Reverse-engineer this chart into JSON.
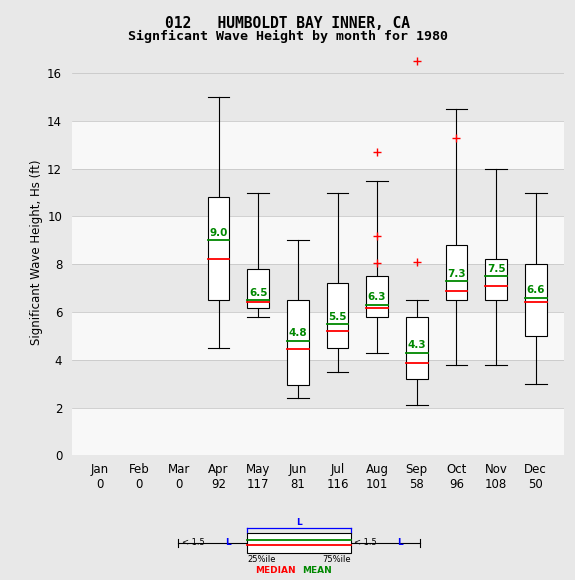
{
  "title1": "012   HUMBOLDT BAY INNER, CA",
  "title2": "Signficant Wave Height by month for 1980",
  "ylabel": "Significant Wave Height, Hs (ft)",
  "months": [
    "Jan",
    "Feb",
    "Mar",
    "Apr",
    "May",
    "Jun",
    "Jul",
    "Aug",
    "Sep",
    "Oct",
    "Nov",
    "Dec"
  ],
  "counts": [
    0,
    0,
    0,
    92,
    117,
    81,
    116,
    101,
    58,
    96,
    108,
    50
  ],
  "ylim": [
    0,
    17
  ],
  "yticks": [
    0,
    2,
    4,
    6,
    8,
    10,
    12,
    14,
    16
  ],
  "boxes": {
    "Apr": {
      "q1": 6.5,
      "median": 8.2,
      "mean": 9.0,
      "q3": 10.8,
      "whislo": 4.5,
      "whishi": 15.0,
      "fliers": []
    },
    "May": {
      "q1": 6.15,
      "median": 6.4,
      "mean": 6.5,
      "q3": 7.8,
      "whislo": 5.8,
      "whishi": 11.0,
      "fliers": []
    },
    "Jun": {
      "q1": 2.95,
      "median": 4.45,
      "mean": 4.8,
      "q3": 6.5,
      "whislo": 2.4,
      "whishi": 9.0,
      "fliers": []
    },
    "Jul": {
      "q1": 4.5,
      "median": 5.2,
      "mean": 5.5,
      "q3": 7.2,
      "whislo": 3.5,
      "whishi": 11.0,
      "fliers": []
    },
    "Aug": {
      "q1": 5.8,
      "median": 6.15,
      "mean": 6.3,
      "q3": 7.5,
      "whislo": 4.3,
      "whishi": 11.5,
      "fliers": [
        8.05,
        9.2,
        12.7
      ]
    },
    "Sep": {
      "q1": 3.2,
      "median": 3.85,
      "mean": 4.3,
      "q3": 5.8,
      "whislo": 2.1,
      "whishi": 6.5,
      "fliers": [
        8.1,
        16.5
      ]
    },
    "Oct": {
      "q1": 6.5,
      "median": 6.9,
      "mean": 7.3,
      "q3": 8.8,
      "whislo": 3.8,
      "whishi": 14.5,
      "fliers": [
        13.3
      ]
    },
    "Nov": {
      "q1": 6.5,
      "median": 7.1,
      "mean": 7.5,
      "q3": 8.2,
      "whislo": 3.8,
      "whishi": 12.0,
      "fliers": []
    },
    "Dec": {
      "q1": 5.0,
      "median": 6.4,
      "mean": 6.6,
      "q3": 8.0,
      "whislo": 3.0,
      "whishi": 11.0,
      "fliers": []
    }
  },
  "box_color": "#ffffff",
  "box_edge_color": "#000000",
  "median_color": "#ff0000",
  "mean_color": "#008800",
  "flier_color": "#ff0000",
  "whisker_color": "#000000",
  "cap_color": "#000000",
  "bg_color": "#e8e8e8",
  "stripe_color": "#f8f8f8"
}
